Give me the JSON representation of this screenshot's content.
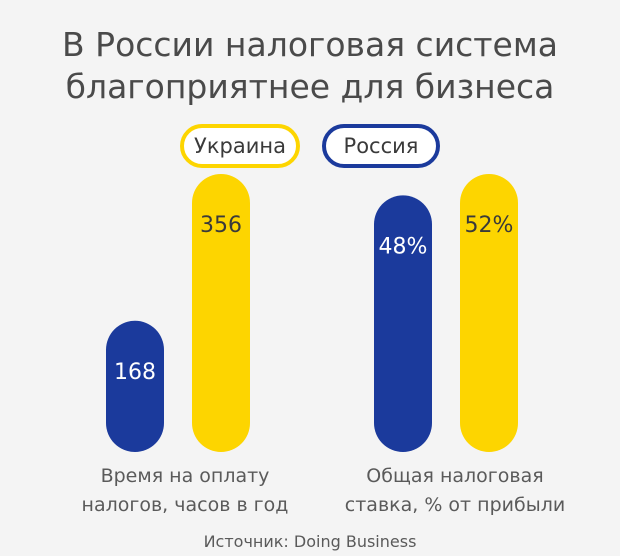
{
  "title_lines": [
    "В России налоговая система",
    "благоприятнее для бизнеса"
  ],
  "source": "Источник: Doing Business",
  "colors": {
    "ukraine": "#fdd500",
    "russia": "#1b3a9c"
  },
  "chart_data": {
    "type": "bar",
    "legend": [
      "Украина",
      "Россия"
    ],
    "legend_position": "top",
    "groups": [
      {
        "label_lines": [
          "Время на оплату",
          "налогов,  часов в год"
        ],
        "bars": [
          {
            "series": "Россия",
            "value": 168,
            "display": "168",
            "color": "#1b3a9c"
          },
          {
            "series": "Украина",
            "value": 356,
            "display": "356",
            "color": "#fdd500"
          }
        ]
      },
      {
        "label_lines": [
          "Общая налоговая",
          "ставка, % от прибыли"
        ],
        "bars": [
          {
            "series": "Россия",
            "value": 48,
            "display": "48%",
            "color": "#1b3a9c"
          },
          {
            "series": "Украина",
            "value": 52,
            "display": "52%",
            "color": "#fdd500"
          }
        ]
      }
    ]
  }
}
